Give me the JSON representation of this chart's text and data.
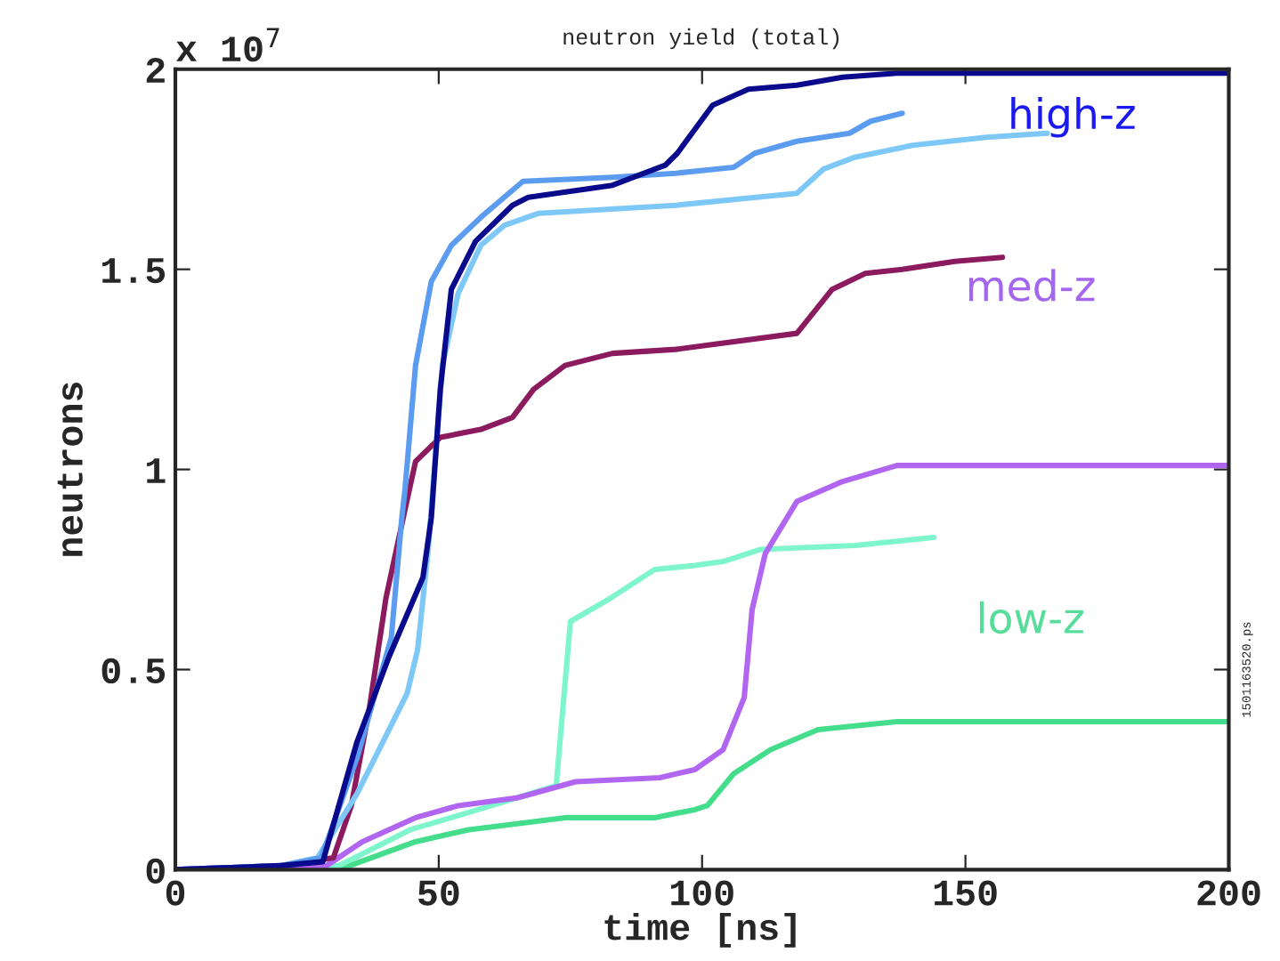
{
  "chart_data": {
    "type": "line",
    "title": "neutron yield (total)",
    "xlabel": "time [ns]",
    "ylabel": "neutrons",
    "xlim": [
      0,
      200
    ],
    "ylim": [
      0,
      2
    ],
    "xticks": [
      0,
      50,
      100,
      150,
      200
    ],
    "yticks": [
      0,
      0.5,
      1,
      1.5,
      2
    ],
    "grid": false,
    "legend": false,
    "marker": "none",
    "line_style": "solid",
    "annotations": [
      "x 10$^{7}$",
      "high-z",
      "med-z",
      "low-z",
      "1501163520.ps"
    ],
    "series": [
      {
        "color": "#0a0a8c",
        "x": [
          0,
          20,
          28,
          34.5,
          40.5,
          47,
          48.6,
          50.3,
          52.4,
          57,
          64,
          67,
          83,
          93,
          95.3,
          102,
          108.8,
          118,
          126.7,
          137,
          200
        ],
        "values": [
          0,
          0.01,
          0.02,
          0.32,
          0.53,
          0.73,
          0.88,
          1.2,
          1.45,
          1.57,
          1.66,
          1.68,
          1.71,
          1.76,
          1.79,
          1.91,
          1.95,
          1.96,
          1.98,
          1.99,
          1.99
        ]
      },
      {
        "color": "#5b9cf0",
        "x": [
          0,
          20,
          27.7,
          34.5,
          41,
          43,
          43.6,
          45.6,
          48.6,
          52.4,
          58,
          66,
          83,
          95,
          106,
          110,
          118,
          128,
          132,
          138
        ],
        "values": [
          0,
          0.01,
          0.03,
          0.28,
          0.58,
          0.88,
          0.95,
          1.26,
          1.47,
          1.56,
          1.63,
          1.72,
          1.73,
          1.74,
          1.755,
          1.79,
          1.82,
          1.84,
          1.87,
          1.89
        ]
      },
      {
        "color": "#7ec8f8",
        "x": [
          0,
          20,
          27,
          34.5,
          44,
          46,
          48,
          50.7,
          53.7,
          58,
          62.5,
          69,
          95,
          118,
          123,
          129,
          140,
          154,
          165.5
        ],
        "values": [
          0,
          0.01,
          0.03,
          0.19,
          0.44,
          0.55,
          0.8,
          1.26,
          1.44,
          1.56,
          1.61,
          1.64,
          1.66,
          1.69,
          1.75,
          1.78,
          1.81,
          1.83,
          1.84
        ]
      },
      {
        "color": "#8b1a5e",
        "x": [
          0,
          20,
          30,
          33.4,
          36.8,
          40,
          43.6,
          45.6,
          50.3,
          58,
          64,
          68,
          74,
          83,
          95,
          118,
          124.7,
          131,
          138,
          148,
          157
        ],
        "values": [
          0,
          0.01,
          0.03,
          0.16,
          0.4,
          0.68,
          0.9,
          1.02,
          1.08,
          1.1,
          1.13,
          1.2,
          1.26,
          1.29,
          1.3,
          1.34,
          1.45,
          1.49,
          1.5,
          1.52,
          1.53
        ]
      },
      {
        "color": "#b066f0",
        "x": [
          0,
          20,
          28.7,
          35.5,
          45.6,
          53.7,
          65,
          76,
          92,
          98.6,
          104,
          108,
          109.5,
          112,
          118,
          126.7,
          137,
          200
        ],
        "values": [
          0,
          0,
          0.01,
          0.07,
          0.13,
          0.16,
          0.18,
          0.22,
          0.23,
          0.25,
          0.3,
          0.43,
          0.65,
          0.79,
          0.92,
          0.97,
          1.01,
          1.01
        ]
      },
      {
        "color": "#7ff5cc",
        "x": [
          0,
          20,
          31,
          44.6,
          52.4,
          62.5,
          72.3,
          75,
          82.8,
          91,
          98.6,
          104,
          111,
          129,
          144
        ],
        "values": [
          0,
          0,
          0.01,
          0.1,
          0.13,
          0.17,
          0.21,
          0.62,
          0.68,
          0.75,
          0.76,
          0.77,
          0.8,
          0.81,
          0.83
        ]
      },
      {
        "color": "#44dd8c",
        "x": [
          0,
          20,
          31,
          45.6,
          55.7,
          74,
          91,
          98.6,
          101,
          106,
          113,
          122,
          137,
          200
        ],
        "values": [
          0,
          0,
          0,
          0.07,
          0.1,
          0.13,
          0.13,
          0.15,
          0.16,
          0.24,
          0.3,
          0.35,
          0.37,
          0.37
        ]
      }
    ]
  }
}
